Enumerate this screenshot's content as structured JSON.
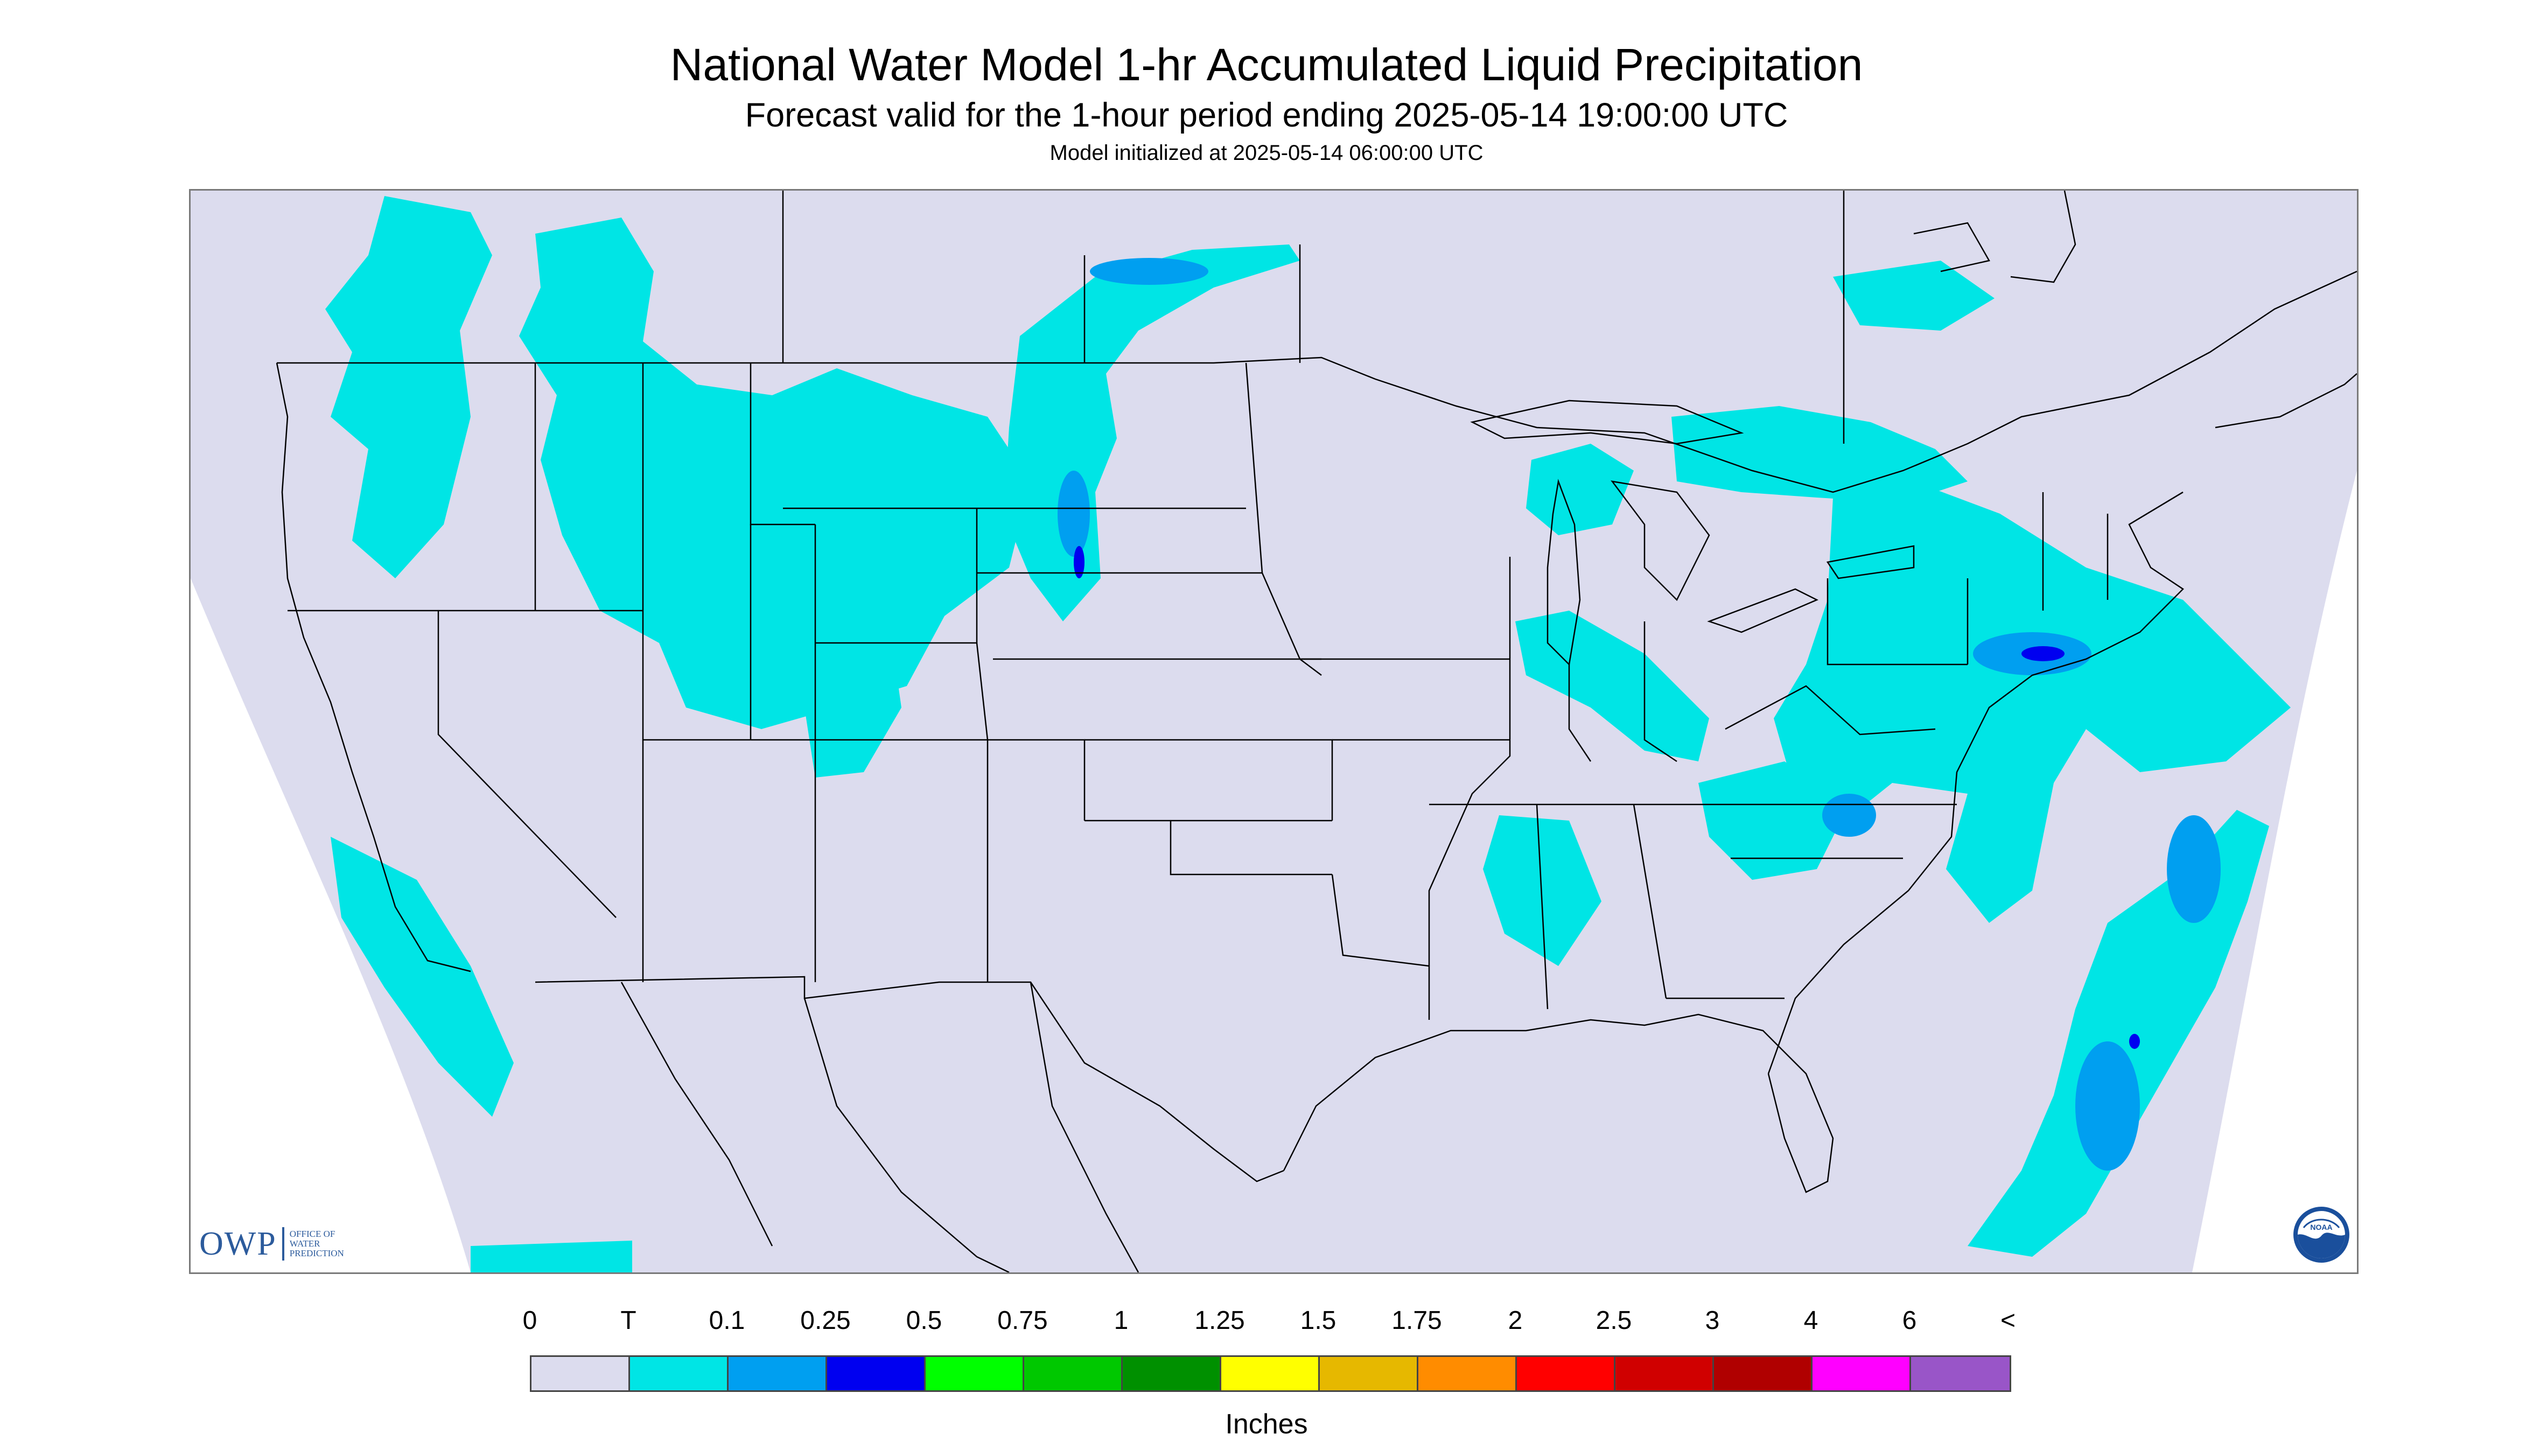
{
  "header": {
    "title": "National Water Model 1-hr Accumulated Liquid Precipitation",
    "subtitle": "Forecast valid for the 1-hour period ending 2025-05-14 19:00:00 UTC",
    "init_line": "Model initialized at 2025-05-14 06:00:00 UTC"
  },
  "map": {
    "background_color": "#dcdcee",
    "outside_domain_color": "#ffffff",
    "boundary_color": "#000000",
    "precip_regions_visible": [
      "Pacific Northwest",
      "Northern Rockies",
      "Montana",
      "Wyoming",
      "North Dakota",
      "Upper Great Lakes",
      "Ohio Valley",
      "Mid-Atlantic",
      "New York",
      "New England",
      "Western Atlantic offshore",
      "Pacific offshore"
    ]
  },
  "logos": {
    "owp_letters": "OWP",
    "owp_line1": "Office of",
    "owp_line2": "Water",
    "owp_line3": "Prediction",
    "noaa_icon": "noaa-logo-icon",
    "noaa_letters": "NOAA"
  },
  "legend": {
    "labels": [
      "0",
      "T",
      "0.1",
      "0.25",
      "0.5",
      "0.75",
      "1",
      "1.25",
      "1.5",
      "1.75",
      "2",
      "2.5",
      "3",
      "4",
      "6",
      "<"
    ],
    "colors": [
      "#dcdcee",
      "#00e5e5",
      "#009ff0",
      "#0000f0",
      "#00ff00",
      "#00c800",
      "#009000",
      "#ffff00",
      "#e6b800",
      "#ff8c00",
      "#ff0000",
      "#d00000",
      "#b00000",
      "#ff00ff",
      "#9955c8"
    ],
    "units": "Inches"
  }
}
